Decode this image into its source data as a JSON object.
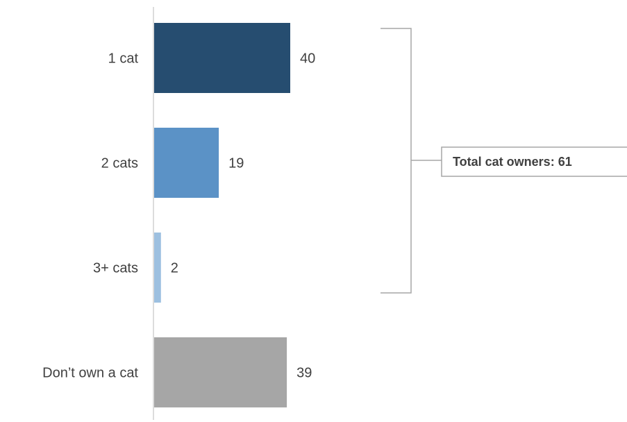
{
  "chart_data": {
    "type": "bar",
    "orientation": "horizontal",
    "title": "",
    "xlabel": "",
    "ylabel": "",
    "categories": [
      "1 cat",
      "2 cats",
      "3+ cats",
      "Don’t own a cat"
    ],
    "values": [
      40,
      19,
      2,
      39
    ],
    "colors": [
      "#264d70",
      "#5b92c6",
      "#9dc0e0",
      "#a6a6a6"
    ],
    "xlim": [
      0,
      40
    ],
    "grid": false,
    "legend": "none",
    "annotation": {
      "text": "Total cat owners: 61",
      "groups": [
        "1 cat",
        "2 cats",
        "3+ cats"
      ]
    }
  }
}
